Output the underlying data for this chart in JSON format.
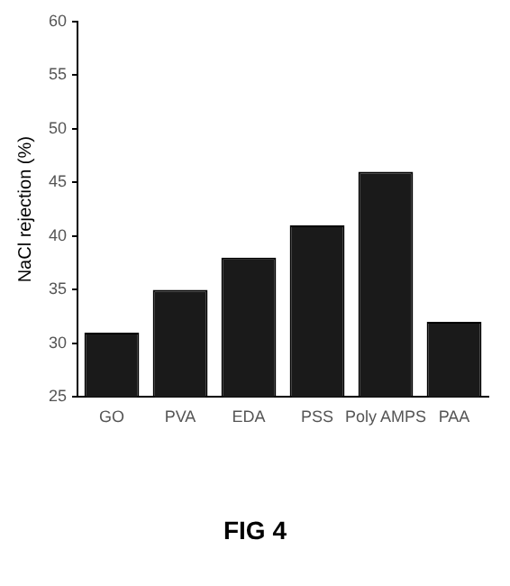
{
  "chart_data": {
    "type": "bar",
    "ylabel": "NaCl rejection (%)",
    "categories": [
      "GO",
      "PVA",
      "EDA",
      "PSS",
      "Poly AMPS",
      "PAA"
    ],
    "values": [
      31,
      35,
      38,
      41,
      46,
      32
    ],
    "color": "#1a1a1a",
    "ylim": [
      25,
      60
    ],
    "yticks": [
      25,
      30,
      35,
      40,
      45,
      50,
      55,
      60
    ],
    "grid": false,
    "legend": false,
    "annotations": [
      "FIG 4"
    ]
  }
}
